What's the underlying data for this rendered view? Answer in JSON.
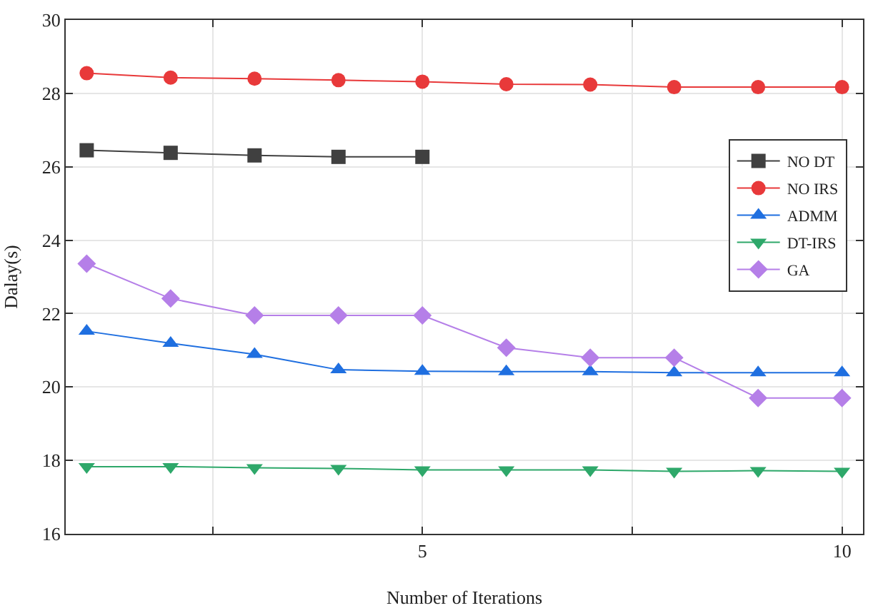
{
  "chart_data": {
    "type": "line",
    "xlabel": "Number of Iterations",
    "ylabel": "Dalay(s)",
    "x": [
      1,
      2,
      3,
      4,
      5,
      6,
      7,
      8,
      9,
      10
    ],
    "series": [
      {
        "name": "NO DT",
        "color": "#404040",
        "marker": "square",
        "values": [
          26.45,
          26.38,
          26.31,
          26.27,
          26.27,
          null,
          null,
          null,
          null,
          null
        ]
      },
      {
        "name": "NO IRS",
        "color": "#e8393a",
        "marker": "circle",
        "values": [
          28.55,
          28.43,
          28.4,
          28.36,
          28.32,
          28.25,
          28.24,
          28.17,
          28.17,
          28.17
        ]
      },
      {
        "name": "ADMM",
        "color": "#1f6fe0",
        "marker": "triangle",
        "values": [
          21.52,
          21.19,
          20.89,
          20.47,
          20.43,
          20.42,
          20.42,
          20.39,
          20.39,
          20.39
        ]
      },
      {
        "name": "DT-IRS",
        "color": "#2ea86a",
        "marker": "triangle-down",
        "values": [
          17.83,
          17.83,
          17.8,
          17.78,
          17.74,
          17.74,
          17.74,
          17.7,
          17.72,
          17.7
        ]
      },
      {
        "name": "GA",
        "color": "#b57fe8",
        "marker": "diamond",
        "values": [
          23.36,
          22.41,
          21.95,
          21.95,
          21.95,
          21.07,
          20.8,
          20.8,
          19.7,
          19.7
        ]
      }
    ],
    "xlim": [
      0.75,
      10.25
    ],
    "xticks": [
      {
        "value": 2.5,
        "label": null
      },
      5,
      {
        "value": 7.5,
        "label": null
      },
      10
    ],
    "ylim": [
      16,
      30
    ],
    "yticks": [
      16,
      18,
      20,
      22,
      24,
      26,
      28,
      30
    ],
    "grid": true,
    "legend": "right",
    "line_style": "solid"
  }
}
